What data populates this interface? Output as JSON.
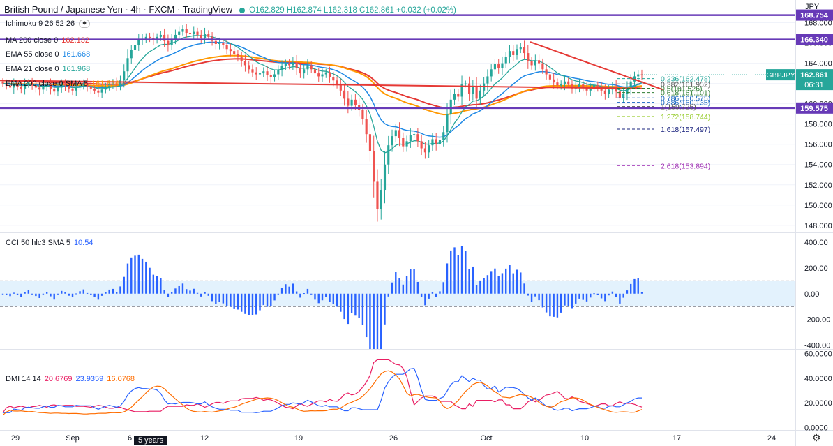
{
  "header": {
    "title": "British Pound / Japanese Yen · 4h · FXCM · TradingView",
    "ohlc": "O162.829 H162.874 L162.318 C162.861 +0.032 (+0.02%)",
    "currency": "JPY"
  },
  "indicators_main": [
    {
      "label": "Ichimoku 9 26 52 26",
      "value": "",
      "color": "#131722"
    },
    {
      "label": "MA 200 close 0",
      "value": "162.132",
      "color": "#e53935"
    },
    {
      "label": "EMA 55 close 0",
      "value": "161.668",
      "color": "#1e88e5"
    },
    {
      "label": "EMA 21 close 0",
      "value": "161.968",
      "color": "#26a69a"
    },
    {
      "label": "EMA 200 close 0 SMA 5",
      "value": "161.824",
      "color": "#ff9800"
    }
  ],
  "cci": {
    "label": "CCI 50 hlc3 SMA 5",
    "value": "10.54",
    "color": "#2962ff"
  },
  "dmi": {
    "label": "DMI 14 14",
    "values": [
      {
        "v": "20.6769",
        "color": "#e91e63"
      },
      {
        "v": "23.9359",
        "color": "#2962ff"
      },
      {
        "v": "16.0768",
        "color": "#ff6d00"
      }
    ]
  },
  "timeframe_button": "5 years",
  "chart_data": {
    "type": "candlestick",
    "symbol": "GBPJPY",
    "interval": "4h",
    "x_tick_labels": [
      "29",
      "Sep",
      "6",
      "12",
      "19",
      "26",
      "Oct",
      "10",
      "17",
      "24"
    ],
    "y_axis": {
      "ticks": [
        "168.000",
        "166.000",
        "164.000",
        "162.000",
        "160.000",
        "158.000",
        "156.000",
        "154.000",
        "152.000",
        "150.000",
        "148.000"
      ],
      "range": [
        147.3,
        169.0
      ]
    },
    "price_levels": [
      {
        "label": "168.754",
        "value": 168.754,
        "color": "#673ab7"
      },
      {
        "label": "166.340",
        "value": 166.34,
        "color": "#673ab7"
      },
      {
        "label": "159.575",
        "value": 159.575,
        "color": "#673ab7"
      }
    ],
    "last_price": {
      "label": "162.861",
      "countdown": "06:31",
      "symbol_tag": "GBPJPY",
      "color": "#26a69a"
    },
    "fibonacci": [
      {
        "label": "0.236(162.478)",
        "value": 162.478,
        "color": "#26a69a"
      },
      {
        "label": "0.382(161.952)",
        "value": 161.952,
        "color": "#555555"
      },
      {
        "label": "0.5(161.526)",
        "value": 161.526,
        "color": "#2e7d32"
      },
      {
        "label": "0.618(161.101)",
        "value": 161.101,
        "color": "#2e7d32"
      },
      {
        "label": "0.786(160.575)",
        "value": 160.575,
        "color": "#1565c0"
      },
      {
        "label": "0.886(160.135)",
        "value": 160.135,
        "color": "#1565c0"
      },
      {
        "label": "1(159.725)",
        "value": 159.725,
        "color": "#555555"
      },
      {
        "label": "1.272(158.744)",
        "value": 158.744,
        "color": "#9acd32"
      },
      {
        "label": "1.618(157.497)",
        "value": 157.497,
        "color": "#1a237e"
      },
      {
        "label": "2.618(153.894)",
        "value": 153.894,
        "color": "#9c27b0"
      }
    ],
    "closes": [
      162.0,
      161.8,
      161.6,
      161.9,
      161.7,
      161.5,
      161.9,
      162.1,
      161.8,
      161.6,
      161.4,
      161.7,
      161.9,
      161.5,
      161.2,
      161.6,
      161.9,
      161.8,
      161.5,
      161.3,
      161.6,
      161.8,
      162.0,
      161.7,
      161.5,
      161.3,
      161.1,
      161.4,
      161.7,
      161.9,
      162.0,
      161.8,
      162.3,
      163.2,
      164.5,
      165.3,
      165.8,
      166.3,
      166.4,
      166.6,
      166.5,
      166.3,
      166.6,
      166.8,
      166.2,
      165.8,
      166.4,
      166.8,
      167.1,
      167.4,
      167.0,
      166.9,
      167.1,
      166.8,
      166.5,
      166.9,
      166.6,
      166.2,
      165.9,
      166.0,
      165.8,
      165.4,
      165.2,
      164.9,
      164.6,
      164.2,
      163.8,
      163.4,
      163.1,
      162.9,
      163.0,
      163.2,
      162.8,
      162.6,
      162.9,
      163.3,
      163.7,
      164.0,
      163.8,
      164.1,
      163.5,
      163.0,
      163.4,
      163.8,
      163.4,
      163.0,
      162.7,
      162.9,
      163.1,
      162.6,
      162.3,
      161.9,
      161.3,
      160.5,
      159.8,
      160.4,
      159.9,
      159.4,
      158.5,
      157.0,
      155.3,
      152.3,
      149.6,
      151.5,
      154.0,
      155.9,
      156.8,
      157.4,
      156.6,
      155.8,
      156.3,
      156.9,
      157.0,
      156.3,
      155.6,
      155.2,
      155.9,
      156.5,
      156.0,
      156.4,
      157.2,
      159.0,
      160.4,
      161.0,
      160.7,
      161.9,
      162.0,
      161.0,
      161.7,
      160.5,
      161.3,
      162.0,
      162.7,
      163.4,
      163.9,
      163.5,
      164.0,
      164.6,
      165.2,
      164.8,
      165.4,
      165.6,
      165.0,
      164.2,
      163.8,
      164.3,
      164.0,
      163.4,
      162.9,
      162.4,
      162.1,
      161.8,
      161.9,
      162.2,
      161.9,
      161.5,
      161.7,
      161.9,
      161.6,
      161.3,
      161.5,
      161.8,
      161.6,
      161.3,
      161.0,
      161.4,
      161.7,
      161.2,
      160.6,
      161.0,
      161.6,
      162.2,
      162.7,
      162.9,
      162.861
    ],
    "cci": {
      "ticks": [
        "400.00",
        "200.00",
        "0.00",
        "-200.00",
        "-400.00"
      ],
      "range": [
        -430,
        460
      ],
      "band": [
        100,
        -100
      ],
      "last": 10.54
    },
    "dmi": {
      "ticks": [
        "60.0000",
        "40.0000",
        "20.0000",
        "0.0000"
      ],
      "range": [
        -2,
        62
      ],
      "series_colors": [
        "#e91e63",
        "#2962ff",
        "#ff6d00"
      ]
    }
  }
}
